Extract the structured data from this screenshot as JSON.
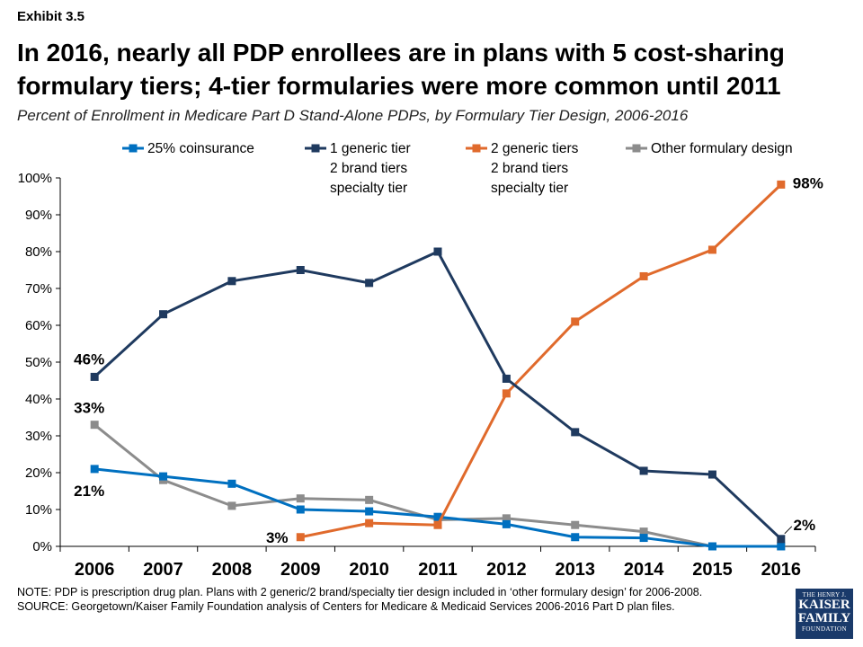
{
  "exhibit": "Exhibit 3.5",
  "title": "In 2016, nearly all PDP enrollees are in plans with 5 cost-sharing formulary tiers; 4-tier formularies were more common until 2011",
  "subtitle": "Percent of Enrollment in Medicare Part D Stand-Alone PDPs, by Formulary Tier Design, 2006-2016",
  "notes": {
    "line1": "NOTE: PDP is prescription drug plan. Plans with 2 generic/2 brand/specialty  tier design included in ‘other formulary design’ for 2006-2008.",
    "line2": "SOURCE: Georgetown/Kaiser Family Foundation analysis of Centers for Medicare & Medicaid Services 2006-2016 Part D plan files."
  },
  "logo": {
    "line1": "THE HENRY J.",
    "line2": "KAISER",
    "line3": "FAMILY",
    "line4": "FOUNDATION"
  },
  "colors": {
    "coinsurance": "#0070c0",
    "one_generic": "#1f3a5f",
    "two_generic": "#e06a2c",
    "other": "#8c8c8c"
  },
  "chart_data": {
    "type": "line",
    "x": [
      "2006",
      "2007",
      "2008",
      "2009",
      "2010",
      "2011",
      "2012",
      "2013",
      "2014",
      "2015",
      "2016"
    ],
    "ylim": [
      0,
      100
    ],
    "yticks": [
      "0%",
      "10%",
      "20%",
      "30%",
      "40%",
      "50%",
      "60%",
      "70%",
      "80%",
      "90%",
      "100%"
    ],
    "legend_position": "top",
    "grid": false,
    "series": [
      {
        "key": "coinsurance",
        "name": [
          "25% coinsurance"
        ],
        "values": [
          21,
          19,
          17,
          10,
          9.5,
          8,
          6,
          2.5,
          2.3,
          0,
          0
        ]
      },
      {
        "key": "one_generic",
        "name": [
          "1 generic tier",
          "2 brand tiers",
          "specialty tier"
        ],
        "values": [
          46,
          63,
          72,
          75,
          71.5,
          80,
          45.5,
          31,
          20.5,
          19.5,
          2
        ]
      },
      {
        "key": "two_generic",
        "name": [
          "2 generic tiers",
          "2 brand tiers",
          "specialty tier"
        ],
        "values": [
          null,
          null,
          null,
          2.5,
          6.3,
          5.8,
          41.5,
          61,
          73.3,
          80.5,
          98.2
        ]
      },
      {
        "key": "other",
        "name": [
          "Other formulary design"
        ],
        "values": [
          33,
          18,
          11,
          13,
          12.6,
          7.2,
          7.6,
          5.8,
          4,
          0,
          0
        ]
      }
    ],
    "annotations": [
      {
        "series": "one_generic",
        "index": 0,
        "text": "46%"
      },
      {
        "series": "other",
        "index": 0,
        "text": "33%"
      },
      {
        "series": "coinsurance",
        "index": 0,
        "text": "21%"
      },
      {
        "series": "two_generic",
        "index": 3,
        "text": "3%"
      },
      {
        "series": "two_generic",
        "index": 10,
        "text": "98%"
      },
      {
        "series": "one_generic",
        "index": 10,
        "text": "2%"
      }
    ]
  }
}
